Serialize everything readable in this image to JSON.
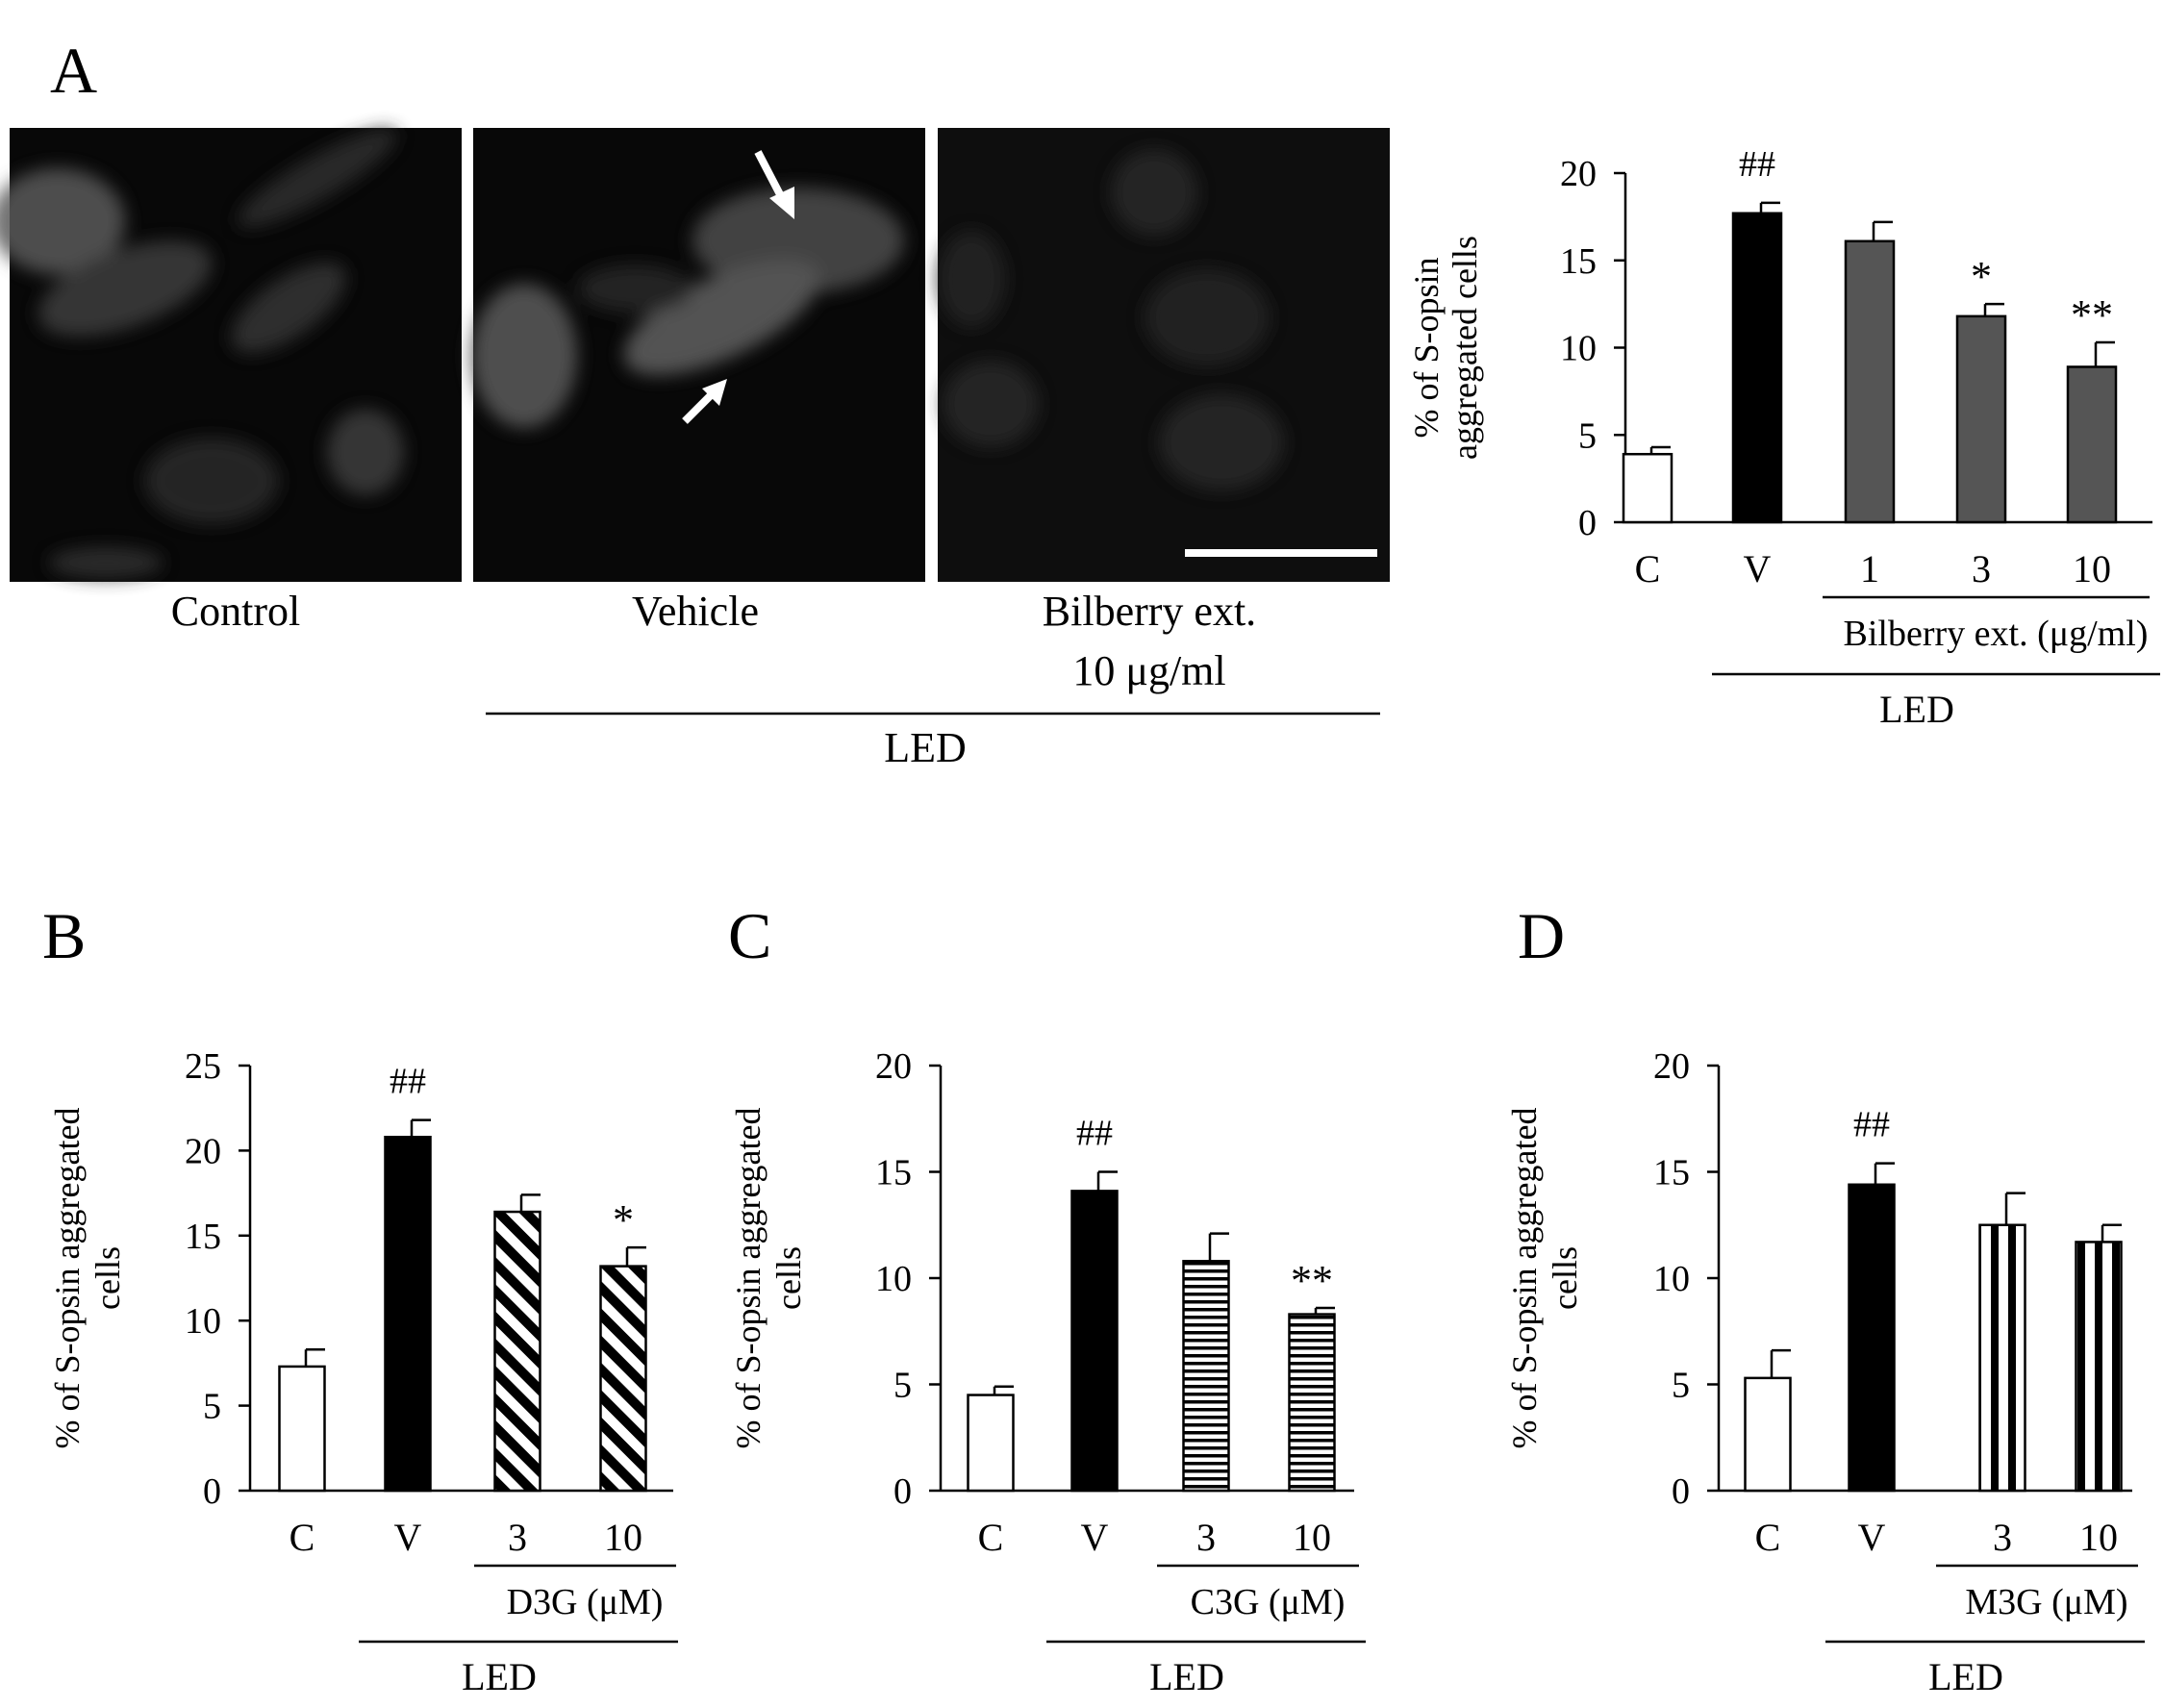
{
  "panel_labels": [
    "A",
    "B",
    "C",
    "D"
  ],
  "micrographs": [
    {
      "label": "Control"
    },
    {
      "label": "Vehicle"
    },
    {
      "label": "Bilberry ext.",
      "label2": "10 μg/ml"
    }
  ],
  "micrograph_group": "LED",
  "chart_data": [
    {
      "panel": "A",
      "type": "bar",
      "categories": [
        "C",
        "V",
        "1",
        "3",
        "10"
      ],
      "values": [
        3.9,
        17.7,
        16.1,
        11.8,
        8.9
      ],
      "errors": [
        0.4,
        0.6,
        1.1,
        0.7,
        1.4
      ],
      "significance": [
        "",
        "##",
        "",
        "*",
        "**"
      ],
      "fills": [
        "white",
        "black",
        "dark-gray",
        "dark-gray",
        "dark-gray"
      ],
      "ylabel": "% of S-opsin aggregated cells",
      "ylabel_lines": [
        "% of S-opsin",
        "aggregated cells"
      ],
      "ylim": [
        0,
        20
      ],
      "yticks": [
        0,
        5,
        10,
        15,
        20
      ],
      "treatment_label": "Bilberry ext. (μg/ml)",
      "group_label": "LED",
      "grid": false
    },
    {
      "panel": "B",
      "type": "bar",
      "categories": [
        "C",
        "V",
        "3",
        "10"
      ],
      "values": [
        7.3,
        20.8,
        16.4,
        13.2
      ],
      "errors": [
        1.0,
        1.0,
        1.0,
        1.1
      ],
      "significance": [
        "",
        "##",
        "",
        "*"
      ],
      "fills": [
        "white",
        "black",
        "diagonal",
        "diagonal"
      ],
      "ylabel": "% of S-opsin aggregated cells",
      "ylabel_lines": [
        "% of S-opsin aggregated",
        "cells"
      ],
      "ylim": [
        0,
        25
      ],
      "yticks": [
        0,
        5,
        10,
        15,
        20,
        25
      ],
      "treatment_label": "D3G (μM)",
      "group_label": "LED",
      "grid": false
    },
    {
      "panel": "C",
      "type": "bar",
      "categories": [
        "C",
        "V",
        "3",
        "10"
      ],
      "values": [
        4.5,
        14.1,
        10.8,
        8.3
      ],
      "errors": [
        0.4,
        0.9,
        1.3,
        0.3
      ],
      "significance": [
        "",
        "##",
        "",
        "**"
      ],
      "fills": [
        "white",
        "black",
        "horizontal",
        "horizontal"
      ],
      "ylabel": "% of S-opsin aggregated cells",
      "ylabel_lines": [
        "% of S-opsin aggregated",
        "cells"
      ],
      "ylim": [
        0,
        20
      ],
      "yticks": [
        0,
        5,
        10,
        15,
        20
      ],
      "treatment_label": "C3G (μM)",
      "group_label": "LED",
      "grid": false
    },
    {
      "panel": "D",
      "type": "bar",
      "categories": [
        "C",
        "V",
        "3",
        "10"
      ],
      "values": [
        5.3,
        14.4,
        12.5,
        11.7
      ],
      "errors": [
        1.3,
        1.0,
        1.5,
        0.8
      ],
      "significance": [
        "",
        "##",
        "",
        ""
      ],
      "fills": [
        "white",
        "black",
        "vertical",
        "vertical"
      ],
      "ylabel": "% of S-opsin aggregated cells",
      "ylabel_lines": [
        "% of S-opsin aggregated",
        "cells"
      ],
      "ylim": [
        0,
        20
      ],
      "yticks": [
        0,
        5,
        10,
        15,
        20
      ],
      "treatment_label": "M3G (μM)",
      "group_label": "LED",
      "grid": false
    }
  ]
}
